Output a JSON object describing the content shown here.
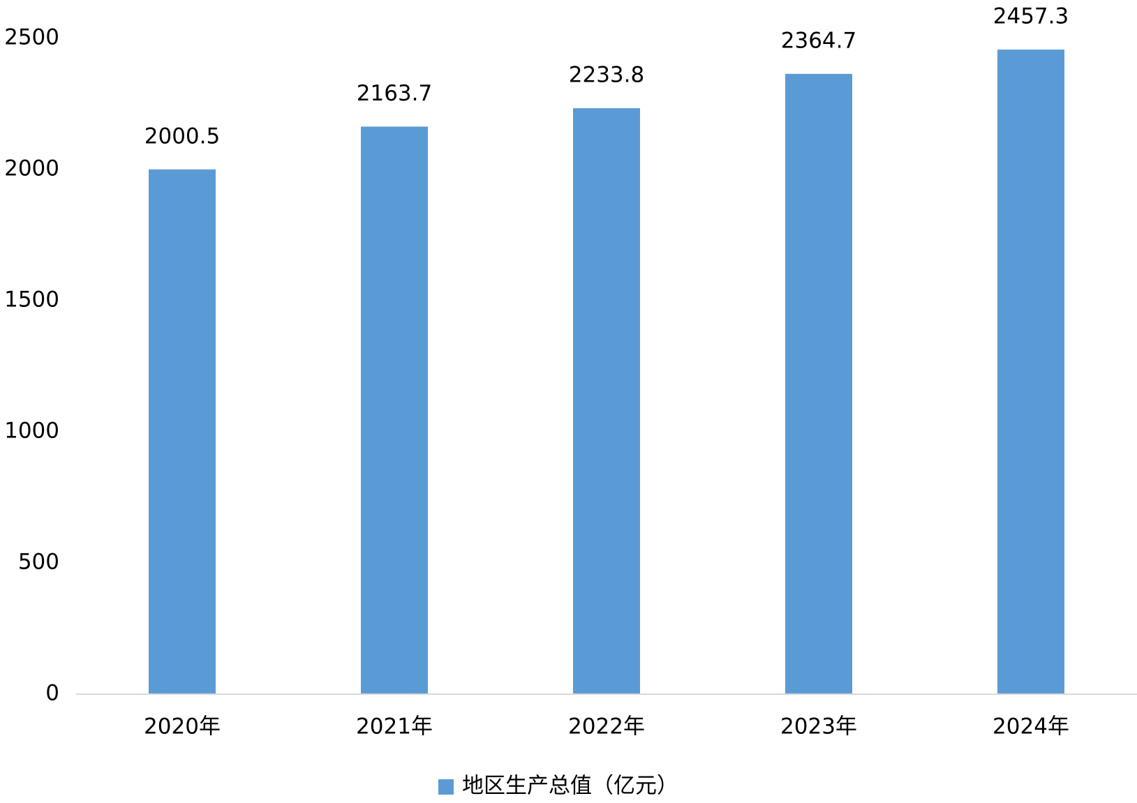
{
  "chart_data": {
    "type": "bar",
    "categories": [
      "2020年",
      "2021年",
      "2022年",
      "2023年",
      "2024年"
    ],
    "series": [
      {
        "name": "地区生产总值（亿元）",
        "color": "#5b9bd5",
        "values": [
          2000.5,
          2163.7,
          2233.8,
          2364.7,
          2457.3
        ]
      }
    ],
    "ylim": [
      0,
      2500
    ],
    "yticks": [
      0,
      500,
      1000,
      1500,
      2000,
      2500
    ],
    "grid": false,
    "legend": "bottom"
  }
}
